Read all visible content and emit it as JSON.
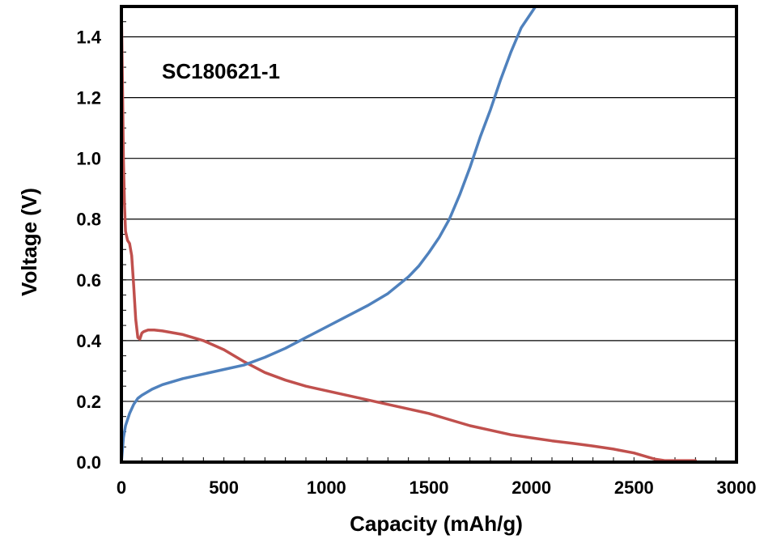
{
  "chart_data": {
    "type": "line",
    "title": "",
    "annotation": "SC180621-1",
    "xlabel": "Capacity (mAh/g)",
    "ylabel": "Voltage (V)",
    "xlim": [
      0,
      3000
    ],
    "ylim": [
      0,
      1.5
    ],
    "xticks": [
      0,
      500,
      1000,
      1500,
      2000,
      2500,
      3000
    ],
    "xtick_labels": [
      "0",
      "500",
      "1000",
      "1500",
      "2000",
      "2500",
      "3000"
    ],
    "yticks": [
      0,
      0.2,
      0.4,
      0.6,
      0.8,
      1.0,
      1.2,
      1.4
    ],
    "ytick_labels": [
      "0.0",
      "0.2",
      "0.4",
      "0.6",
      "0.8",
      "1.0",
      "1.2",
      "1.4"
    ],
    "grid": "horizontal",
    "legend": "none",
    "series": [
      {
        "color": "#c0504d",
        "x": [
          0,
          5,
          10,
          15,
          20,
          30,
          40,
          50,
          60,
          70,
          80,
          90,
          100,
          110,
          130,
          160,
          200,
          300,
          400,
          500,
          600,
          700,
          800,
          900,
          1000,
          1100,
          1200,
          1300,
          1400,
          1500,
          1600,
          1700,
          1800,
          1900,
          2000,
          2100,
          2200,
          2300,
          2400,
          2500,
          2600,
          2650,
          2700,
          2800
        ],
        "y": [
          1.5,
          1.25,
          1.0,
          0.85,
          0.76,
          0.73,
          0.72,
          0.68,
          0.58,
          0.47,
          0.41,
          0.405,
          0.425,
          0.43,
          0.435,
          0.435,
          0.432,
          0.42,
          0.4,
          0.37,
          0.33,
          0.295,
          0.27,
          0.25,
          0.235,
          0.22,
          0.205,
          0.19,
          0.175,
          0.16,
          0.14,
          0.12,
          0.105,
          0.09,
          0.08,
          0.07,
          0.062,
          0.053,
          0.043,
          0.03,
          0.01,
          0.005,
          0.005,
          0.005
        ]
      },
      {
        "color": "#4f81bd",
        "x": [
          0,
          5,
          10,
          20,
          40,
          60,
          80,
          100,
          150,
          200,
          300,
          400,
          500,
          600,
          700,
          800,
          900,
          1000,
          1100,
          1200,
          1300,
          1400,
          1450,
          1500,
          1550,
          1600,
          1650,
          1700,
          1750,
          1800,
          1850,
          1900,
          1950,
          2000,
          2020
        ],
        "y": [
          0,
          0.04,
          0.08,
          0.12,
          0.16,
          0.19,
          0.21,
          0.22,
          0.24,
          0.255,
          0.275,
          0.29,
          0.305,
          0.32,
          0.345,
          0.375,
          0.41,
          0.445,
          0.48,
          0.515,
          0.555,
          0.61,
          0.645,
          0.69,
          0.74,
          0.8,
          0.88,
          0.97,
          1.07,
          1.16,
          1.26,
          1.35,
          1.43,
          1.48,
          1.5
        ]
      }
    ]
  }
}
